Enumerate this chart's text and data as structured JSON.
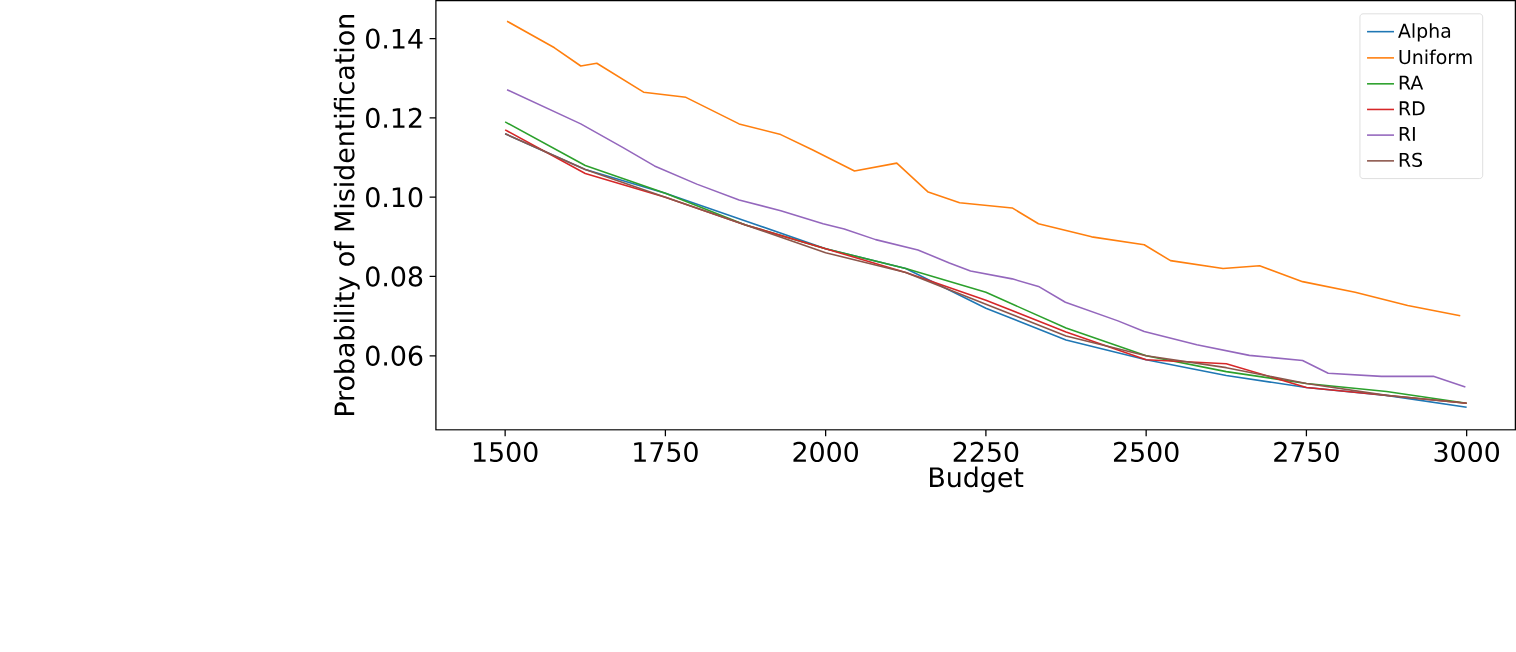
{
  "chart_data": {
    "type": "line",
    "xlabel": "Budget",
    "ylabel": "Probability of Misidentification",
    "xlim": [
      1392,
      3076
    ],
    "ylim": [
      0.0413,
      0.1496
    ],
    "xticks": [
      1500,
      1750,
      2000,
      2250,
      2500,
      2750,
      3000
    ],
    "yticks": [
      {
        "value": 0.06,
        "label": "0.06"
      },
      {
        "value": 0.08,
        "label": "0.08"
      },
      {
        "value": 0.1,
        "label": "0.10"
      },
      {
        "value": 0.12,
        "label": "0.12"
      },
      {
        "value": 0.14,
        "label": "0.14"
      }
    ],
    "legend": "top right",
    "grid": false,
    "marker": "none",
    "line_style": "solid",
    "series": [
      {
        "name": "Alpha",
        "color": "#1f77b4",
        "x": [
          1500,
          1625,
          1750,
          1875,
          2000,
          2125,
          2250,
          2375,
          2500,
          2625,
          2750,
          2875,
          3000
        ],
        "values": [
          0.116,
          0.107,
          0.101,
          0.094,
          0.087,
          0.082,
          0.072,
          0.064,
          0.059,
          0.055,
          0.052,
          0.05,
          0.047
        ]
      },
      {
        "name": "Uniform",
        "color": "#ff7f0e",
        "x": [
          1503,
          1577,
          1618,
          1643,
          1716,
          1782,
          1865,
          1930,
          1980,
          2045,
          2111,
          2160,
          2209,
          2291,
          2332,
          2415,
          2497,
          2538,
          2620,
          2677,
          2744,
          2826,
          2908,
          2990
        ],
        "values": [
          0.1444,
          0.1377,
          0.1331,
          0.1338,
          0.1265,
          0.1252,
          0.1185,
          0.1158,
          0.1119,
          0.1066,
          0.1086,
          0.1013,
          0.0986,
          0.0973,
          0.0933,
          0.09,
          0.088,
          0.084,
          0.082,
          0.0827,
          0.0787,
          0.076,
          0.0727,
          0.0701
        ]
      },
      {
        "name": "RA",
        "color": "#2ca02c",
        "x": [
          1500,
          1625,
          1750,
          1875,
          2000,
          2125,
          2250,
          2375,
          2500,
          2625,
          2750,
          2875,
          3000
        ],
        "values": [
          0.119,
          0.108,
          0.101,
          0.093,
          0.087,
          0.082,
          0.076,
          0.067,
          0.06,
          0.056,
          0.053,
          0.051,
          0.048
        ]
      },
      {
        "name": "RD",
        "color": "#d62728",
        "x": [
          1500,
          1625,
          1750,
          1875,
          2000,
          2125,
          2250,
          2375,
          2500,
          2625,
          2750,
          2875,
          3000
        ],
        "values": [
          0.117,
          0.106,
          0.1,
          0.093,
          0.087,
          0.081,
          0.074,
          0.066,
          0.059,
          0.058,
          0.052,
          0.05,
          0.048
        ]
      },
      {
        "name": "RI",
        "color": "#9467bd",
        "x": [
          1503,
          1618,
          1684,
          1733,
          1799,
          1865,
          1930,
          1996,
          2029,
          2078,
          2144,
          2193,
          2226,
          2291,
          2332,
          2374,
          2456,
          2497,
          2579,
          2661,
          2744,
          2784,
          2867,
          2948,
          2998
        ],
        "values": [
          0.1271,
          0.1185,
          0.1125,
          0.1079,
          0.1033,
          0.0993,
          0.0966,
          0.0933,
          0.092,
          0.0893,
          0.0867,
          0.0834,
          0.0814,
          0.0794,
          0.0775,
          0.0735,
          0.0688,
          0.0661,
          0.0628,
          0.0601,
          0.0588,
          0.0556,
          0.0548,
          0.0548,
          0.0521
        ]
      },
      {
        "name": "RS",
        "color": "#8c564b",
        "x": [
          1500,
          1625,
          1750,
          1875,
          2000,
          2125,
          2250,
          2375,
          2500,
          2625,
          2750,
          2875,
          3000
        ],
        "values": [
          0.116,
          0.107,
          0.1,
          0.093,
          0.086,
          0.081,
          0.073,
          0.065,
          0.06,
          0.057,
          0.053,
          0.05,
          0.048
        ]
      }
    ]
  }
}
